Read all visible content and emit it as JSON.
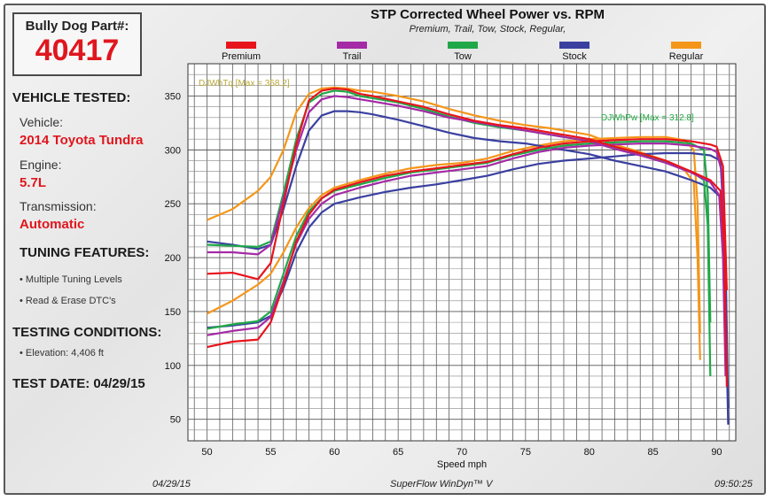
{
  "part": {
    "label": "Bully Dog Part#:",
    "number": "40417"
  },
  "vehicle": {
    "heading": "VEHICLE TESTED:",
    "vehicle_label": "Vehicle:",
    "vehicle_value": "2014 Toyota Tundra",
    "engine_label": "Engine:",
    "engine_value": "5.7L",
    "transmission_label": "Transmission:",
    "transmission_value": "Automatic"
  },
  "tuning": {
    "heading": "TUNING FEATURES:",
    "items": [
      "Multiple Tuning Levels",
      "Read & Erase DTC's"
    ]
  },
  "testing": {
    "heading": "TESTING CONDITIONS:",
    "items": [
      "Elevation: 4,406 ft"
    ]
  },
  "test_date": "TEST DATE: 04/29/15",
  "footer": {
    "date": "04/29/15",
    "software": "SuperFlow WinDyn™ V",
    "time": "09:50:25"
  },
  "chart_data": {
    "type": "line",
    "title": "STP Corrected Wheel Power vs. RPM",
    "subtitle": "Premium, Trail, Tow, Stock, Regular,",
    "xlabel": "Speed  mph",
    "xlim": [
      48.5,
      91.5
    ],
    "ylim": [
      30,
      380
    ],
    "xticks": [
      50,
      55,
      60,
      65,
      70,
      75,
      80,
      85,
      90
    ],
    "yticks": [
      50,
      100,
      150,
      200,
      250,
      300,
      350
    ],
    "grid": true,
    "legend_position": "top",
    "annotations": [
      {
        "text": "DJWhTq [Max = 358.2]",
        "color": "#b8a838"
      },
      {
        "text": "DJWhPw [Max = 312.8]",
        "color": "#22aa44"
      }
    ],
    "series": [
      {
        "name": "Premium",
        "color": "#e8141c",
        "torque": [
          [
            50,
            185
          ],
          [
            52,
            186
          ],
          [
            54,
            180
          ],
          [
            55,
            195
          ],
          [
            56,
            250
          ],
          [
            57,
            305
          ],
          [
            58,
            346
          ],
          [
            59,
            355
          ],
          [
            60,
            357
          ],
          [
            61,
            356
          ],
          [
            62,
            352
          ],
          [
            63,
            350
          ],
          [
            65,
            345
          ],
          [
            67,
            340
          ],
          [
            69,
            333
          ],
          [
            71,
            327
          ],
          [
            73,
            323
          ],
          [
            75,
            320
          ],
          [
            77,
            316
          ],
          [
            80,
            310
          ],
          [
            82,
            303
          ],
          [
            84,
            297
          ],
          [
            86,
            290
          ],
          [
            88,
            280
          ],
          [
            89.5,
            272
          ],
          [
            90.3,
            262
          ],
          [
            90.6,
            210
          ],
          [
            90.8,
            80
          ]
        ],
        "power": [
          [
            50,
            117
          ],
          [
            52,
            122
          ],
          [
            54,
            124
          ],
          [
            55,
            140
          ],
          [
            56,
            175
          ],
          [
            57,
            215
          ],
          [
            58,
            240
          ],
          [
            59,
            255
          ],
          [
            60,
            263
          ],
          [
            62,
            270
          ],
          [
            64,
            276
          ],
          [
            66,
            280
          ],
          [
            68,
            283
          ],
          [
            70,
            286
          ],
          [
            72,
            289
          ],
          [
            74,
            296
          ],
          [
            76,
            302
          ],
          [
            78,
            306
          ],
          [
            80,
            308
          ],
          [
            82,
            309
          ],
          [
            84,
            310
          ],
          [
            86,
            310
          ],
          [
            88,
            308
          ],
          [
            89.5,
            305
          ],
          [
            90,
            303
          ],
          [
            90.5,
            285
          ],
          [
            90.8,
            170
          ]
        ]
      },
      {
        "name": "Trail",
        "color": "#a42aa6",
        "torque": [
          [
            50,
            205
          ],
          [
            52,
            205
          ],
          [
            54,
            203
          ],
          [
            55,
            212
          ],
          [
            56,
            255
          ],
          [
            57,
            300
          ],
          [
            58,
            335
          ],
          [
            59,
            347
          ],
          [
            60,
            350
          ],
          [
            61,
            349
          ],
          [
            62,
            347
          ],
          [
            63,
            345
          ],
          [
            65,
            341
          ],
          [
            67,
            336
          ],
          [
            69,
            330
          ],
          [
            71,
            326
          ],
          [
            73,
            322
          ],
          [
            75,
            318
          ],
          [
            77,
            314
          ],
          [
            80,
            308
          ],
          [
            82,
            301
          ],
          [
            84,
            295
          ],
          [
            86,
            288
          ],
          [
            88,
            279
          ],
          [
            89.5,
            270
          ],
          [
            90.2,
            258
          ],
          [
            90.5,
            200
          ],
          [
            90.7,
            90
          ]
        ],
        "power": [
          [
            50,
            128
          ],
          [
            52,
            132
          ],
          [
            54,
            135
          ],
          [
            55,
            145
          ],
          [
            56,
            178
          ],
          [
            57,
            213
          ],
          [
            58,
            236
          ],
          [
            59,
            250
          ],
          [
            60,
            258
          ],
          [
            62,
            265
          ],
          [
            64,
            271
          ],
          [
            66,
            276
          ],
          [
            68,
            279
          ],
          [
            70,
            282
          ],
          [
            72,
            285
          ],
          [
            74,
            292
          ],
          [
            76,
            298
          ],
          [
            78,
            302
          ],
          [
            80,
            304
          ],
          [
            82,
            305
          ],
          [
            84,
            306
          ],
          [
            86,
            306
          ],
          [
            88,
            304
          ],
          [
            89.5,
            301
          ],
          [
            90,
            298
          ],
          [
            90.4,
            280
          ],
          [
            90.6,
            160
          ]
        ]
      },
      {
        "name": "Tow",
        "color": "#20a848",
        "torque": [
          [
            50,
            212
          ],
          [
            52,
            211
          ],
          [
            54,
            210
          ],
          [
            55,
            215
          ],
          [
            56,
            260
          ],
          [
            57,
            310
          ],
          [
            58,
            344
          ],
          [
            59,
            352
          ],
          [
            60,
            355
          ],
          [
            61,
            354
          ],
          [
            62,
            350
          ],
          [
            63,
            348
          ],
          [
            65,
            344
          ],
          [
            67,
            338
          ],
          [
            69,
            331
          ],
          [
            71,
            325
          ],
          [
            73,
            321
          ],
          [
            75,
            318
          ],
          [
            77,
            314
          ],
          [
            80,
            308
          ],
          [
            82,
            302
          ],
          [
            84,
            296
          ],
          [
            86,
            289
          ],
          [
            88,
            280
          ],
          [
            89,
            272
          ],
          [
            89.3,
            230
          ],
          [
            89.5,
            90
          ]
        ],
        "power": [
          [
            50,
            134
          ],
          [
            52,
            138
          ],
          [
            54,
            141
          ],
          [
            55,
            150
          ],
          [
            56,
            185
          ],
          [
            57,
            220
          ],
          [
            58,
            243
          ],
          [
            59,
            255
          ],
          [
            60,
            262
          ],
          [
            62,
            268
          ],
          [
            64,
            274
          ],
          [
            66,
            279
          ],
          [
            68,
            282
          ],
          [
            70,
            285
          ],
          [
            72,
            288
          ],
          [
            74,
            295
          ],
          [
            76,
            300
          ],
          [
            78,
            304
          ],
          [
            80,
            306
          ],
          [
            82,
            307
          ],
          [
            84,
            308
          ],
          [
            86,
            308
          ],
          [
            88,
            306
          ],
          [
            89,
            300
          ],
          [
            89.3,
            260
          ],
          [
            89.5,
            140
          ]
        ]
      },
      {
        "name": "Stock",
        "color": "#3a40a0",
        "torque": [
          [
            50,
            215
          ],
          [
            52,
            212
          ],
          [
            54,
            208
          ],
          [
            55,
            212
          ],
          [
            56,
            245
          ],
          [
            57,
            285
          ],
          [
            58,
            318
          ],
          [
            59,
            332
          ],
          [
            60,
            336
          ],
          [
            61,
            336
          ],
          [
            62,
            335
          ],
          [
            63,
            333
          ],
          [
            65,
            328
          ],
          [
            67,
            322
          ],
          [
            69,
            316
          ],
          [
            71,
            311
          ],
          [
            73,
            308
          ],
          [
            75,
            306
          ],
          [
            77,
            302
          ],
          [
            80,
            296
          ],
          [
            82,
            290
          ],
          [
            84,
            285
          ],
          [
            86,
            280
          ],
          [
            88,
            272
          ],
          [
            89.5,
            265
          ],
          [
            90.4,
            255
          ],
          [
            90.7,
            160
          ],
          [
            90.9,
            45
          ]
        ],
        "power": [
          [
            50,
            135
          ],
          [
            52,
            137
          ],
          [
            54,
            140
          ],
          [
            55,
            146
          ],
          [
            56,
            172
          ],
          [
            57,
            205
          ],
          [
            58,
            228
          ],
          [
            59,
            242
          ],
          [
            60,
            250
          ],
          [
            62,
            256
          ],
          [
            64,
            261
          ],
          [
            66,
            265
          ],
          [
            68,
            268
          ],
          [
            70,
            272
          ],
          [
            72,
            276
          ],
          [
            74,
            282
          ],
          [
            76,
            287
          ],
          [
            78,
            290
          ],
          [
            80,
            292
          ],
          [
            82,
            294
          ],
          [
            84,
            296
          ],
          [
            86,
            297
          ],
          [
            88,
            297
          ],
          [
            89.5,
            295
          ],
          [
            90.3,
            290
          ],
          [
            90.7,
            200
          ],
          [
            90.9,
            60
          ]
        ]
      },
      {
        "name": "Regular",
        "color": "#f4961a",
        "torque": [
          [
            50,
            235
          ],
          [
            52,
            245
          ],
          [
            54,
            262
          ],
          [
            55,
            275
          ],
          [
            56,
            300
          ],
          [
            57,
            335
          ],
          [
            58,
            352
          ],
          [
            59,
            357
          ],
          [
            60,
            358
          ],
          [
            61,
            357
          ],
          [
            62,
            355
          ],
          [
            63,
            354
          ],
          [
            65,
            350
          ],
          [
            67,
            345
          ],
          [
            69,
            338
          ],
          [
            71,
            332
          ],
          [
            73,
            327
          ],
          [
            75,
            323
          ],
          [
            77,
            320
          ],
          [
            80,
            314
          ],
          [
            82,
            305
          ],
          [
            84,
            298
          ],
          [
            86,
            290
          ],
          [
            87.5,
            281
          ],
          [
            88.2,
            270
          ],
          [
            88.5,
            200
          ],
          [
            88.7,
            105
          ]
        ],
        "power": [
          [
            50,
            148
          ],
          [
            52,
            160
          ],
          [
            54,
            175
          ],
          [
            55,
            185
          ],
          [
            56,
            205
          ],
          [
            57,
            228
          ],
          [
            58,
            246
          ],
          [
            59,
            258
          ],
          [
            60,
            265
          ],
          [
            62,
            272
          ],
          [
            64,
            278
          ],
          [
            66,
            283
          ],
          [
            68,
            286
          ],
          [
            70,
            288
          ],
          [
            72,
            292
          ],
          [
            74,
            299
          ],
          [
            76,
            304
          ],
          [
            78,
            308
          ],
          [
            80,
            310
          ],
          [
            82,
            311
          ],
          [
            84,
            312
          ],
          [
            86,
            312
          ],
          [
            87.5,
            309
          ],
          [
            88.2,
            300
          ],
          [
            88.5,
            250
          ],
          [
            88.7,
            130
          ]
        ]
      }
    ]
  }
}
